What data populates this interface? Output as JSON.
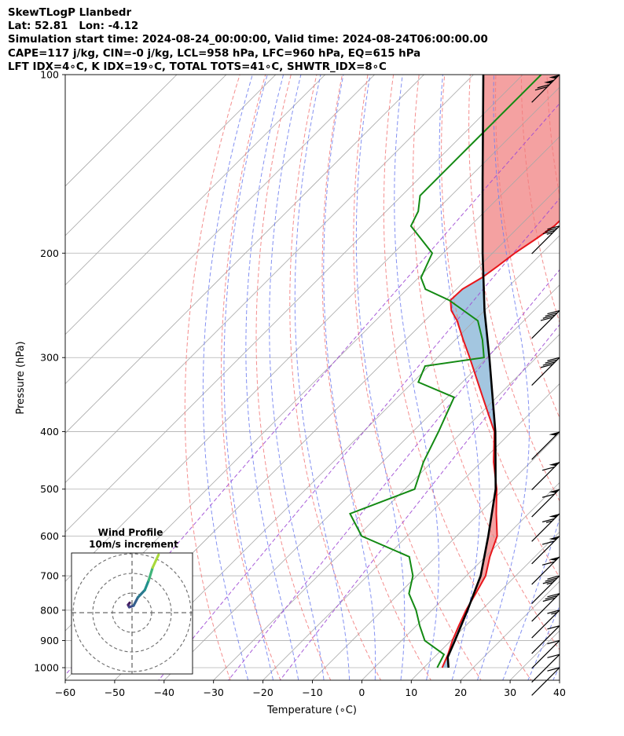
{
  "header": {
    "line1": "SkewTLogP Llanbedr",
    "line2": "Lat: 52.81   Lon: -4.12",
    "line3": "Simulation start time: 2024-08-24_00:00:00, Valid time: 2024-08-24T06:00:00.00",
    "line4": "CAPE=117 j/kg, CIN=-0 j/kg, LCL=958 hPa, LFC=960 hPa, EQ=615 hPa",
    "line5": "LFT IDX=4∘C, K IDX=19∘C, TOTAL TOTS=41∘C, SHWTR_IDX=8∘C"
  },
  "colors": {
    "temperature": "#e8161b",
    "dewpoint": "#138a13",
    "parcel": "#000000",
    "cape_fill": "#a3c6e0",
    "cin_fill": "#f4a1a1",
    "dry_adiabat": "#f27a7a",
    "moist_adiabat": "#6f7ef0",
    "mixing_ratio": "#9f4ad4",
    "isotherm": "#a8a8a8",
    "isobar": "#b0b0b0"
  },
  "chart_data": [
    {
      "type": "line",
      "subtype": "skew-t log-p",
      "xlabel": "Temperature (∘C)",
      "ylabel": "Pressure (hPa)",
      "xlim": [
        -60,
        40
      ],
      "ylim": [
        1050,
        100
      ],
      "y_scale": "log",
      "skew": "45 degrees",
      "grid": true,
      "x_ticks": [
        -60,
        -50,
        -40,
        -30,
        -20,
        -10,
        0,
        10,
        20,
        30,
        40
      ],
      "y_ticks": [
        100,
        200,
        300,
        400,
        500,
        600,
        700,
        800,
        900,
        1000
      ],
      "series": [
        {
          "key": "temperature",
          "pressure": [
            1000,
            950,
            900,
            850,
            800,
            750,
            700,
            650,
            600,
            550,
            500,
            450,
            400,
            350,
            300,
            280,
            260,
            250,
            240,
            230,
            220,
            210,
            200,
            190,
            180,
            170,
            160,
            150,
            140,
            130,
            120,
            110,
            100
          ],
          "temperature": [
            13.7,
            12.2,
            10.3,
            8.6,
            6.9,
            5.5,
            3.9,
            0.9,
            -1.8,
            -6.5,
            -11.4,
            -17.5,
            -23.5,
            -32.8,
            -43.5,
            -48.4,
            -53.5,
            -56.7,
            -59.0,
            -58.8,
            -57.2,
            -56.3,
            -55.5,
            -54.2,
            -53.0,
            -52.9,
            -52.9,
            -54.1,
            -55.2,
            -56.6,
            -57.2,
            -59.3,
            -61.1
          ]
        },
        {
          "key": "dewpoint",
          "pressure": [
            1000,
            950,
            900,
            850,
            800,
            750,
            700,
            650,
            600,
            550,
            500,
            450,
            400,
            350,
            330,
            310,
            300,
            280,
            260,
            240,
            230,
            220,
            200,
            180,
            170,
            160,
            150,
            140,
            130,
            120,
            110,
            100
          ],
          "dewpoint": [
            12.7,
            11.4,
            4.7,
            0.7,
            -3.2,
            -8.0,
            -10.8,
            -15.4,
            -29.2,
            -36.1,
            -28.0,
            -31.7,
            -34.8,
            -38.6,
            -48.9,
            -50.8,
            -40.6,
            -44.5,
            -49.3,
            -59.3,
            -66.3,
            -69.5,
            -72.2,
            -82.0,
            -83.5,
            -86.3,
            -86.3,
            -86.3,
            -86.3,
            -86.3,
            -86.3,
            -86.3
          ]
        },
        {
          "key": "parcel",
          "pressure": [
            1000,
            960,
            900,
            800,
            700,
            600,
            500,
            400,
            300,
            250,
            200,
            150,
            100
          ],
          "temperature": [
            15.0,
            12.7,
            10.8,
            7.2,
            2.9,
            -3.6,
            -11.6,
            -23.3,
            -39.5,
            -50.0,
            -62.0,
            -77.0,
            -98.0
          ]
        }
      ],
      "shaded_regions": [
        "CAPE",
        "CIN"
      ]
    },
    {
      "type": "line",
      "subtype": "hodograph",
      "title": "Wind Profile",
      "subtitle": "10m/s increment",
      "rings_ms": [
        10,
        20,
        30
      ],
      "u": [
        -1.2,
        -2.0,
        -1.4,
        0.8,
        3.0,
        6.5,
        8.5,
        10.5,
        13.5
      ],
      "v": [
        5.0,
        4.0,
        2.8,
        3.6,
        7.8,
        11.5,
        16.5,
        23.0,
        29.5
      ]
    }
  ],
  "wind_barbs": [
    {
      "pressure": 100,
      "barb": "50-50-10-10"
    },
    {
      "pressure": 180,
      "barb": "10-10-10-5"
    },
    {
      "pressure": 250,
      "barb": "10-10-10-10"
    },
    {
      "pressure": 300,
      "barb": "10-10-10-10"
    },
    {
      "pressure": 400,
      "barb": "50"
    },
    {
      "pressure": 450,
      "barb": "50-10"
    },
    {
      "pressure": 500,
      "barb": "50-10"
    },
    {
      "pressure": 550,
      "barb": "50-10-5"
    },
    {
      "pressure": 600,
      "barb": "50-10"
    },
    {
      "pressure": 650,
      "barb": "50-10"
    },
    {
      "pressure": 700,
      "barb": "10-10-10-5"
    },
    {
      "pressure": 750,
      "barb": "10-10-10"
    },
    {
      "pressure": 800,
      "barb": "10-5"
    },
    {
      "pressure": 850,
      "barb": "10"
    },
    {
      "pressure": 900,
      "barb": "10"
    },
    {
      "pressure": 950,
      "barb": "10"
    },
    {
      "pressure": 1000,
      "barb": "10"
    }
  ]
}
